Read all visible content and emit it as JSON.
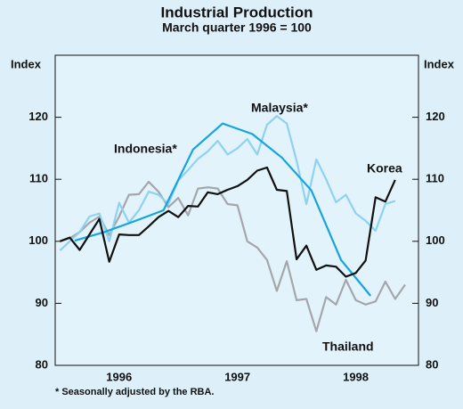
{
  "chart_data": {
    "type": "line",
    "title": "Industrial Production",
    "subtitle": "March quarter 1996 = 100",
    "ylabel": "Index",
    "y2label": "Index",
    "footnote": "* Seasonally adjusted by the RBA.",
    "x": [
      1996,
      1996.083,
      1996.167,
      1996.25,
      1996.333,
      1996.417,
      1996.5,
      1996.583,
      1996.667,
      1996.75,
      1996.833,
      1996.917,
      1997,
      1997.083,
      1997.167,
      1997.25,
      1997.333,
      1997.417,
      1997.5,
      1997.583,
      1997.667,
      1997.75,
      1997.833,
      1997.917,
      1998,
      1998.083,
      1998.167,
      1998.25,
      1998.333,
      1998.417,
      1998.5,
      1998.583,
      1998.667,
      1998.75,
      1998.833,
      1998.917
    ],
    "xlim": [
      1995.96,
      1999.03
    ],
    "xticks": [
      {
        "value": 1996.5,
        "label": "1996"
      },
      {
        "value": 1997.5,
        "label": "1997"
      },
      {
        "value": 1998.5,
        "label": "1998"
      }
    ],
    "ylim": [
      80,
      130
    ],
    "yticks": [
      80,
      90,
      100,
      110,
      120
    ],
    "y2lim": [
      80,
      130
    ],
    "y2ticks": [
      80,
      90,
      100,
      110,
      120
    ],
    "grid": false,
    "series": [
      {
        "name": "Thailand",
        "color": "#a3a7ab",
        "values": [
          100,
          100.5,
          101.5,
          103,
          104,
          101,
          104,
          107.5,
          107.6,
          109.6,
          108,
          105.5,
          107,
          104.2,
          108.5,
          108.7,
          108.5,
          106,
          105.8,
          100,
          99,
          97,
          92,
          96.8,
          90.5,
          90.7,
          85.5,
          91,
          89.8,
          93.8,
          90.5,
          89.8,
          90.3,
          93.5,
          90.7,
          93
        ]
      },
      {
        "name": "Malaysia*",
        "color": "#8dd2f0",
        "values": [
          98.5,
          100,
          101.5,
          104,
          104.5,
          100,
          106.2,
          103,
          105,
          108,
          107.5,
          106,
          109.8,
          111.5,
          113.3,
          114.5,
          116.2,
          114,
          115,
          116.5,
          114,
          118.8,
          120.2,
          119,
          113,
          106,
          113.2,
          110,
          106.3,
          107.5,
          104.5,
          103.3,
          101.7,
          106,
          106.5,
          null
        ]
      },
      {
        "name": "Indonesia*",
        "color": "#16a3de",
        "axis": "y",
        "x": [
          1996.125,
          1996.375,
          1996.625,
          1996.875,
          1997.125,
          1997.375,
          1997.625,
          1997.875,
          1998.125,
          1998.375,
          1998.625
        ],
        "values": [
          100.1,
          101.5,
          103.2,
          105,
          114.8,
          119,
          117.3,
          113.5,
          108.2,
          97,
          91.2
        ]
      },
      {
        "name": "Korea",
        "color": "#111111",
        "values": [
          100,
          100.6,
          98.6,
          101.1,
          103.6,
          96.7,
          101.1,
          101,
          101,
          102.4,
          103.9,
          104.9,
          103.9,
          105.7,
          105.6,
          107.9,
          107.6,
          108.3,
          108.9,
          109.9,
          111.4,
          111.9,
          108.3,
          108.1,
          97.1,
          99.3,
          95.4,
          96.1,
          95.9,
          94.3,
          94.9,
          96.9,
          107.1,
          106.4,
          109.9,
          null
        ]
      }
    ]
  }
}
